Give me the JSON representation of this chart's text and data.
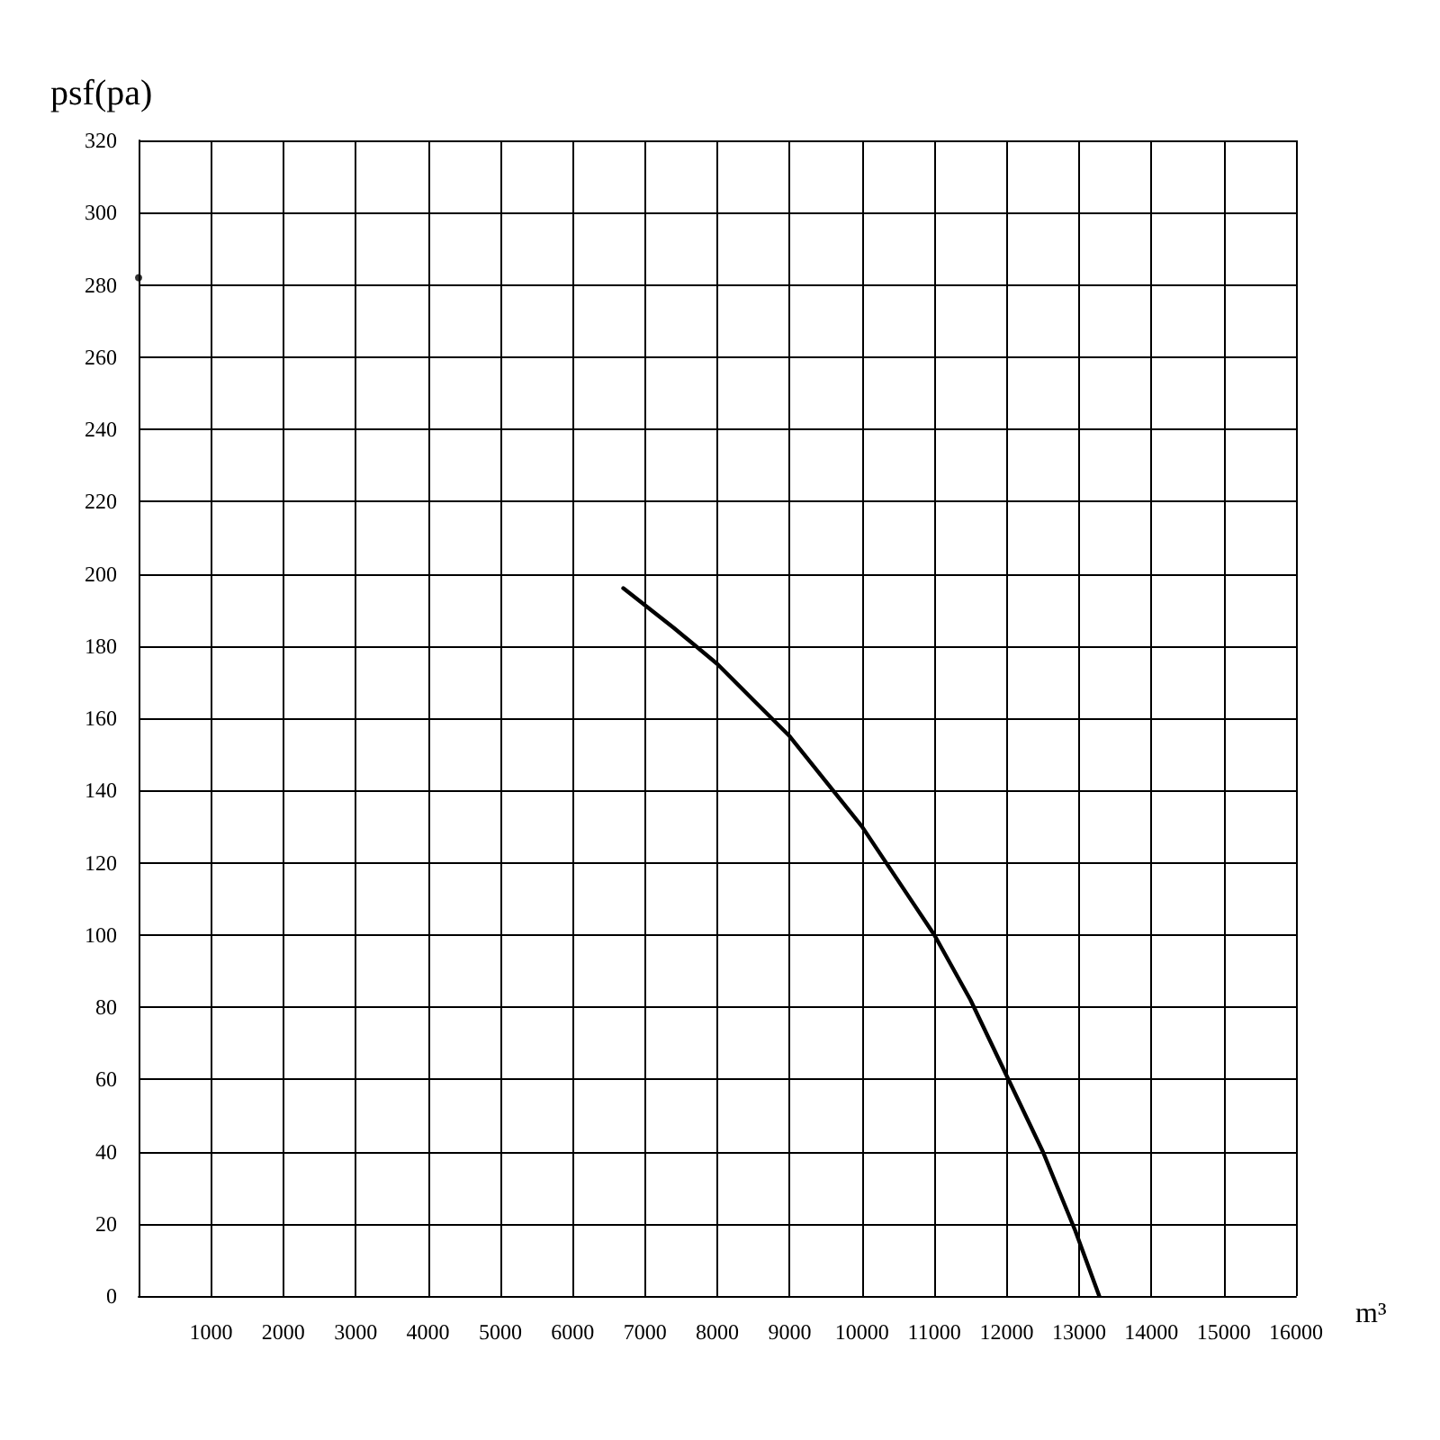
{
  "chart_data": {
    "type": "line",
    "xlabel": "m³",
    "ylabel": "psf(pa)",
    "xlim": [
      0,
      16000
    ],
    "xticks": [
      {
        "value": 0,
        "label": null
      },
      1000,
      2000,
      3000,
      4000,
      5000,
      6000,
      7000,
      8000,
      9000,
      10000,
      11000,
      12000,
      13000,
      14000,
      15000,
      16000
    ],
    "ylim": [
      0,
      320
    ],
    "yticks": [
      0,
      20,
      40,
      60,
      80,
      100,
      120,
      140,
      160,
      180,
      200,
      220,
      240,
      260,
      280,
      300,
      320
    ],
    "grid": true,
    "line_style": "solid",
    "series": [
      {
        "color": "#000000",
        "x": [
          6700,
          7400,
          8000,
          8500,
          9000,
          10000,
          11000,
          11500,
          12000,
          12500,
          12950,
          13280
        ],
        "values": [
          196,
          185,
          175,
          165,
          155,
          130,
          100,
          82,
          61,
          40,
          18,
          0
        ]
      },
      {
        "type": "scatter",
        "color": "#000000",
        "x": [
          0
        ],
        "values": [
          282
        ]
      }
    ]
  }
}
